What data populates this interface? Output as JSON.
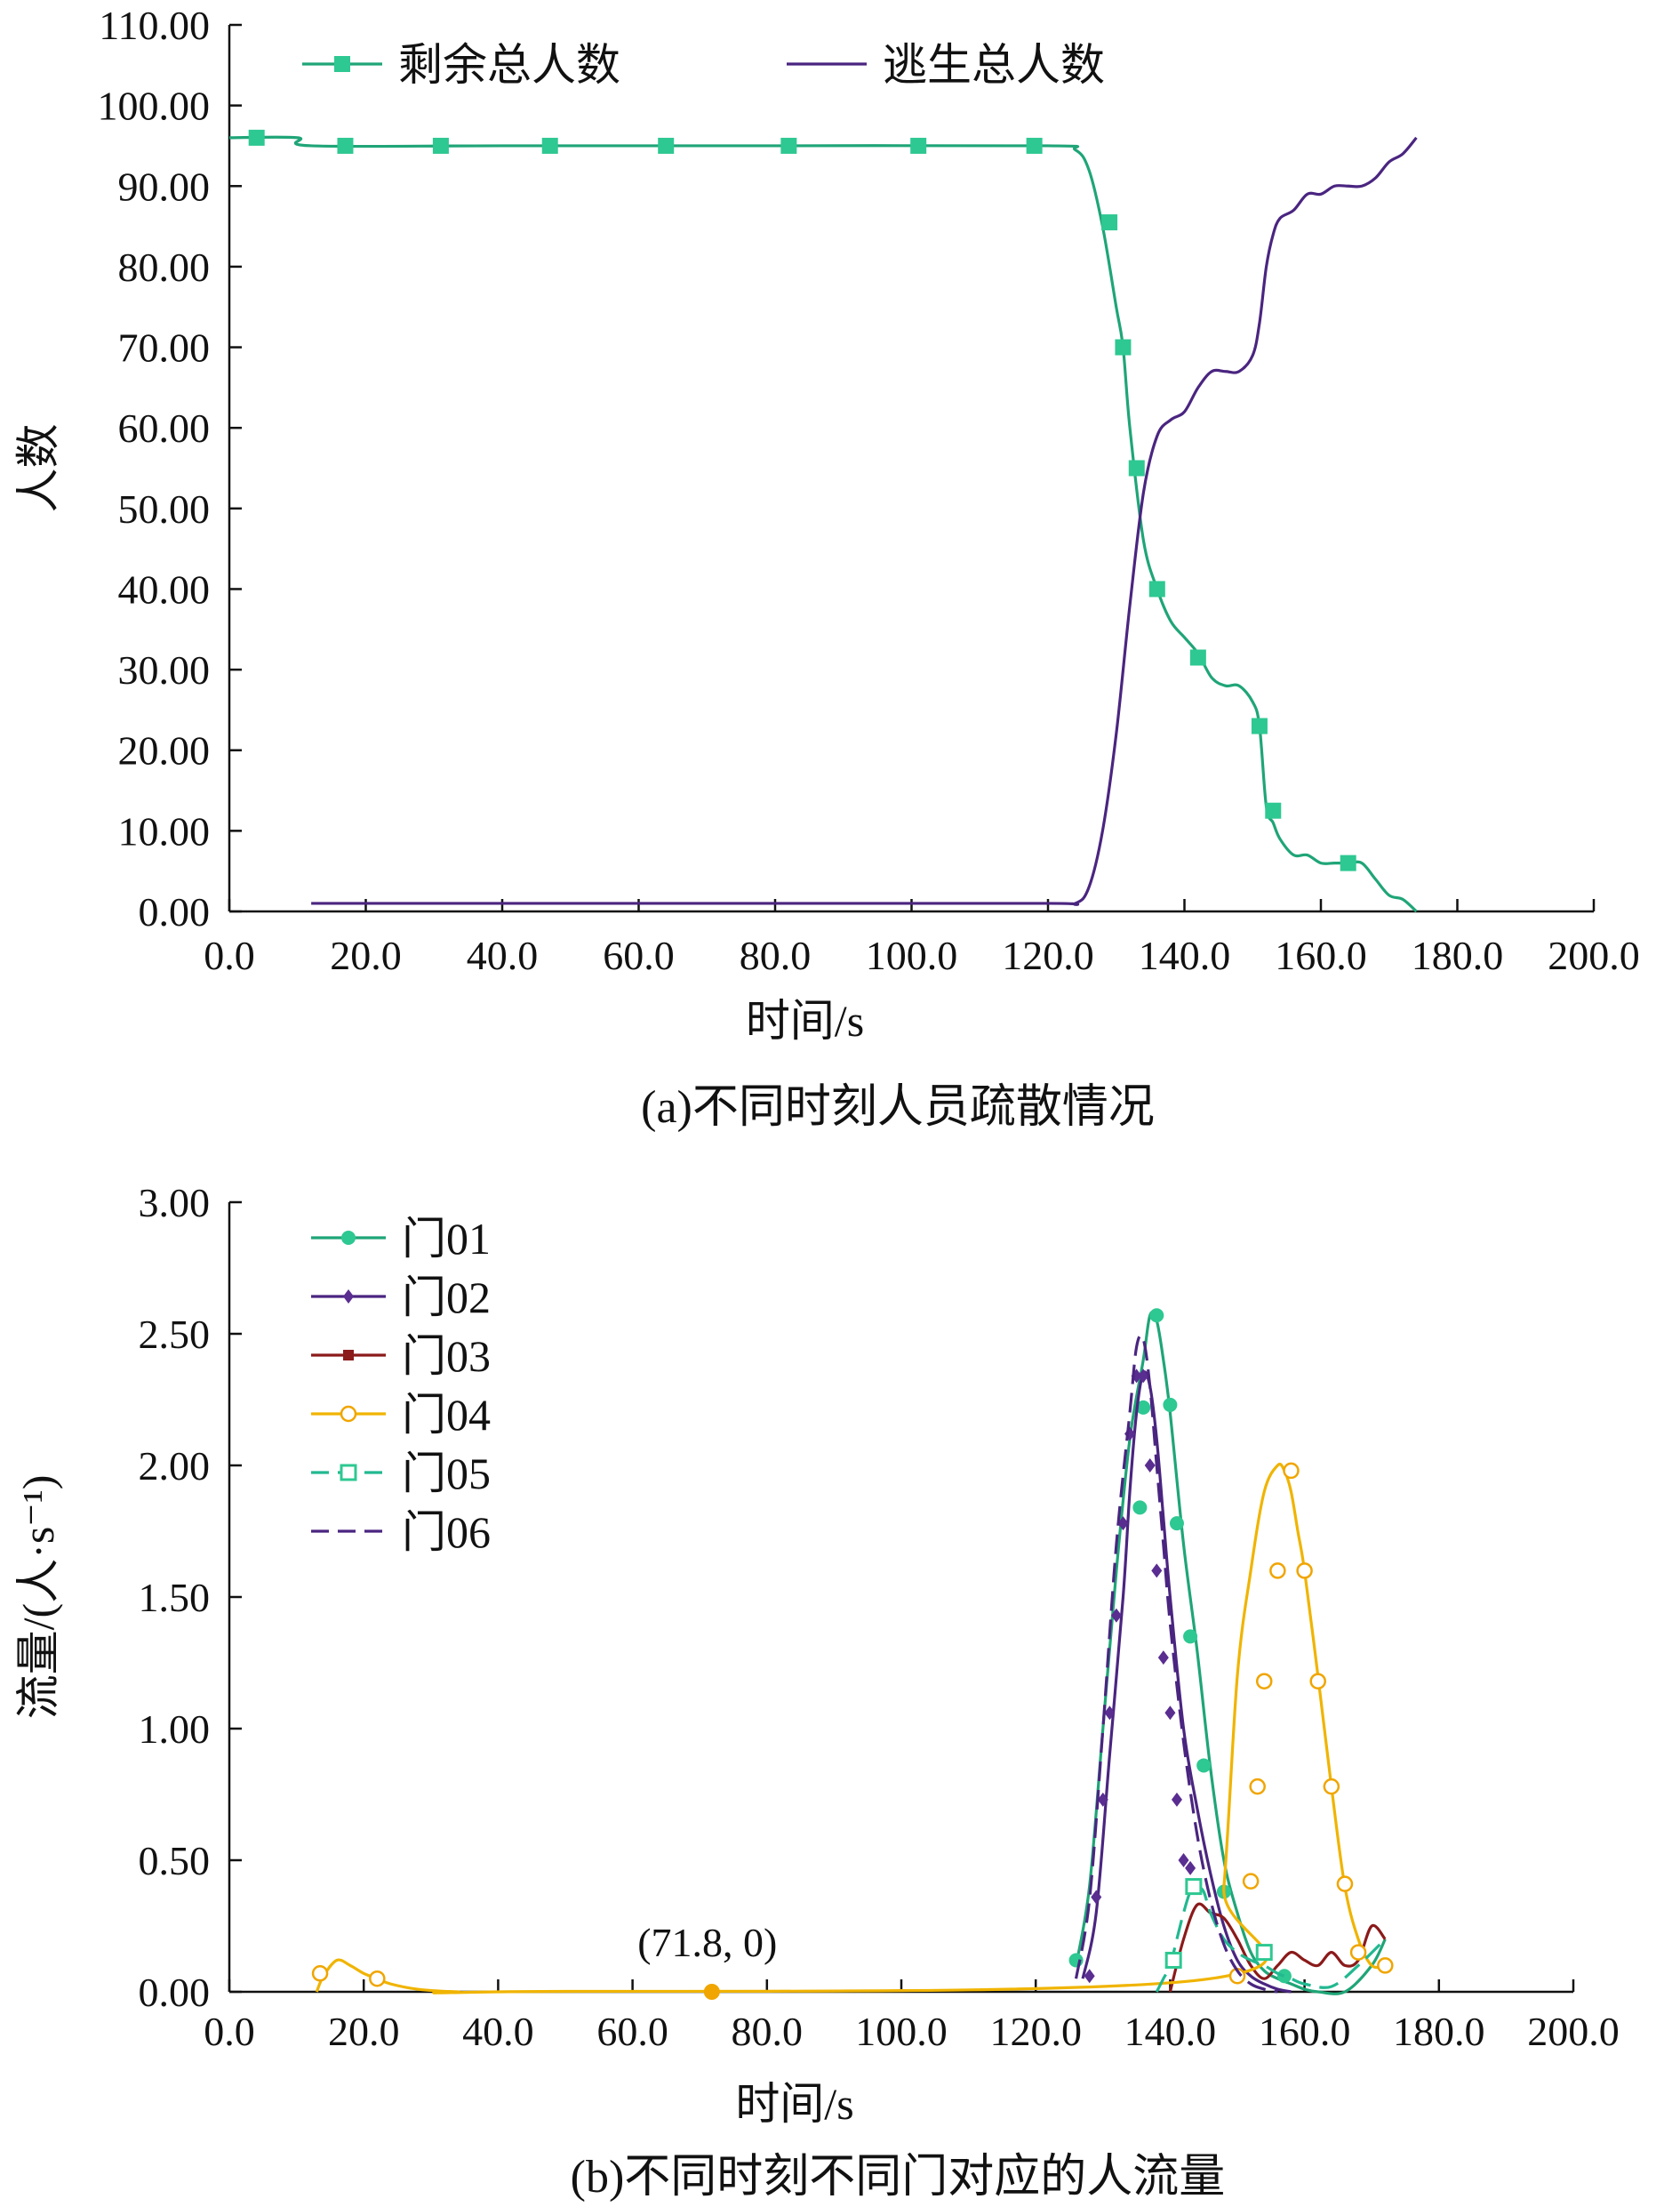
{
  "figure": {
    "panels": [
      "a",
      "b"
    ]
  },
  "chart_data": [
    {
      "id": "a",
      "type": "line",
      "caption": "(a)不同时刻人员疏散情况",
      "xlabel": "时间/s",
      "ylabel": "人数",
      "xlim": [
        0,
        200
      ],
      "ylim": [
        0,
        110
      ],
      "x_ticks": [
        0,
        20,
        40,
        60,
        80,
        100,
        120,
        140,
        160,
        180,
        200
      ],
      "x_tick_labels": [
        "0.0",
        "20.0",
        "40.0",
        "60.0",
        "80.0",
        "100.0",
        "120.0",
        "140.0",
        "160.0",
        "180.0",
        "200.0"
      ],
      "y_ticks": [
        0,
        10,
        20,
        30,
        40,
        50,
        60,
        70,
        80,
        90,
        100,
        110
      ],
      "y_tick_labels": [
        "0.00",
        "10.00",
        "20.00",
        "30.00",
        "40.00",
        "50.00",
        "60.00",
        "70.00",
        "80.00",
        "90.00",
        "100.00",
        "110.00"
      ],
      "grid": false,
      "legend": "top-left",
      "series": [
        {
          "name": "剩余总人数",
          "color": "#1fa577",
          "marker": "square",
          "marker_color": "#2ec892",
          "x": [
            0,
            10,
            12,
            40,
            80,
            120,
            124,
            126,
            128,
            130,
            131,
            132,
            134,
            136,
            138,
            140,
            142,
            144,
            146,
            148,
            150,
            151,
            152,
            153,
            154,
            156,
            158,
            160,
            162,
            164,
            166,
            168,
            170,
            172,
            174
          ],
          "y": [
            96,
            96,
            95,
            95,
            95,
            95,
            94.5,
            92,
            85,
            75,
            70,
            60,
            46,
            40,
            36,
            34,
            32,
            29,
            28,
            28,
            26,
            23,
            13,
            11,
            9,
            7,
            7,
            6,
            6,
            6,
            6,
            4,
            2,
            1.5,
            0
          ],
          "markers_x": [
            4,
            17,
            31,
            47,
            64,
            82,
            101,
            118,
            129,
            131,
            133,
            136,
            142,
            151,
            153,
            164
          ],
          "markers_y": [
            96,
            95,
            95,
            95,
            95,
            95,
            95,
            95,
            85.5,
            70,
            55,
            40,
            31.5,
            23,
            12.5,
            6
          ]
        },
        {
          "name": "逃生总人数",
          "color": "#4a2580",
          "marker": "none",
          "x": [
            12,
            40,
            80,
            120,
            124,
            126,
            128,
            130,
            132,
            134,
            136,
            138,
            140,
            142,
            144,
            146,
            148,
            150,
            151,
            152,
            153,
            154,
            156,
            158,
            160,
            162,
            164,
            166,
            168,
            170,
            172,
            174
          ],
          "y": [
            1,
            1,
            1,
            1,
            1,
            3,
            10,
            22,
            38,
            52,
            59,
            61,
            62,
            65,
            67,
            67,
            67,
            69,
            73,
            80,
            84,
            86,
            87,
            89,
            89,
            90,
            90,
            90,
            91,
            93,
            94,
            96
          ]
        }
      ]
    },
    {
      "id": "b",
      "type": "line",
      "caption": "(b)不同时刻不同门对应的人流量",
      "xlabel": "时间/s",
      "ylabel": "流量/(人·s⁻¹)",
      "xlim": [
        0,
        200
      ],
      "ylim": [
        0,
        3
      ],
      "x_ticks": [
        0,
        20,
        40,
        60,
        80,
        100,
        120,
        140,
        160,
        180,
        200
      ],
      "x_tick_labels": [
        "0.0",
        "20.0",
        "40.0",
        "60.0",
        "80.0",
        "100.0",
        "120.0",
        "140.0",
        "160.0",
        "180.0",
        "200.0"
      ],
      "y_ticks": [
        0,
        0.5,
        1,
        1.5,
        2,
        2.5,
        3
      ],
      "y_tick_labels": [
        "0.00",
        "0.50",
        "1.00",
        "1.50",
        "2.00",
        "2.50",
        "3.00"
      ],
      "grid": false,
      "legend": "top-left",
      "annotations": [
        {
          "text": "(71.8, 0)",
          "x": 71.8,
          "y": 0,
          "color": "#f0a500"
        }
      ],
      "series": [
        {
          "name": "门01",
          "color": "#1fa577",
          "marker": "circle-filled",
          "marker_color": "#2ec892",
          "x": [
            126,
            128,
            130,
            132,
            134,
            136,
            137,
            138,
            139,
            140,
            142,
            144,
            146,
            148,
            150,
            152,
            154,
            156,
            158,
            160,
            162,
            166,
            170,
            172
          ],
          "y": [
            0.1,
            0.4,
            1.0,
            1.6,
            2.1,
            2.4,
            2.57,
            2.55,
            2.4,
            2.2,
            1.7,
            1.3,
            0.85,
            0.5,
            0.3,
            0.15,
            0.08,
            0.05,
            0.03,
            0.01,
            0.0,
            0.0,
            0.1,
            0.2
          ],
          "markers_x": [
            126,
            135.5,
            136,
            138,
            140,
            141,
            143,
            145,
            148,
            157
          ],
          "markers_y": [
            0.12,
            1.84,
            2.22,
            2.57,
            2.23,
            1.78,
            1.35,
            0.86,
            0.38,
            0.06
          ]
        },
        {
          "name": "门02",
          "color": "#4a2580",
          "marker": "diamond",
          "marker_color": "#5a2d91",
          "x": [
            127,
            129,
            131,
            133,
            134,
            135,
            136,
            137,
            138,
            139,
            140,
            142,
            144,
            146,
            148,
            150,
            152,
            154,
            156,
            158
          ],
          "y": [
            0.05,
            0.3,
            0.9,
            1.5,
            1.9,
            2.2,
            2.35,
            2.3,
            2.1,
            1.8,
            1.5,
            1.0,
            0.7,
            0.45,
            0.25,
            0.12,
            0.06,
            0.03,
            0.01,
            0.0
          ],
          "markers_x": [
            128,
            129,
            130,
            131,
            132,
            133,
            134,
            135,
            136,
            137,
            138,
            139,
            140,
            141,
            142,
            143
          ],
          "markers_y": [
            0.06,
            0.36,
            0.73,
            1.06,
            1.43,
            1.78,
            2.12,
            2.34,
            2.34,
            2.0,
            1.6,
            1.27,
            1.06,
            0.73,
            0.5,
            0.47
          ]
        },
        {
          "name": "门03",
          "color": "#8b1a1a",
          "marker": "plus",
          "marker_color": "#8b1a1a",
          "x": [
            140,
            142,
            144,
            146,
            148,
            150,
            152,
            154,
            156,
            158,
            160,
            162,
            164,
            166,
            168,
            170,
            172
          ],
          "y": [
            0.0,
            0.2,
            0.33,
            0.3,
            0.28,
            0.2,
            0.1,
            0.05,
            0.1,
            0.15,
            0.12,
            0.1,
            0.15,
            0.1,
            0.12,
            0.25,
            0.2
          ],
          "markers_x": [],
          "markers_y": []
        },
        {
          "name": "门04",
          "color": "#f0b400",
          "marker": "circle-open",
          "marker_color": "#f0a500",
          "x": [
            13,
            14,
            16,
            18,
            20,
            22,
            24,
            28,
            34,
            40,
            146,
            148,
            150,
            152,
            154,
            156,
            157,
            158,
            159,
            160,
            162,
            164,
            166,
            168,
            170,
            172
          ],
          "y": [
            0.0,
            0.06,
            0.12,
            0.1,
            0.07,
            0.05,
            0.03,
            0.01,
            0.0,
            0.0,
            0.05,
            0.4,
            1.2,
            1.6,
            1.9,
            2.0,
            1.98,
            1.9,
            1.75,
            1.6,
            1.2,
            0.78,
            0.4,
            0.2,
            0.1,
            0.1
          ],
          "markers_x": [
            13.5,
            22,
            150,
            152,
            153,
            154,
            156,
            158,
            160,
            162,
            164,
            166,
            168,
            172
          ],
          "markers_y": [
            0.07,
            0.05,
            0.06,
            0.42,
            0.78,
            1.18,
            1.6,
            1.98,
            1.6,
            1.18,
            0.78,
            0.41,
            0.15,
            0.1
          ]
        },
        {
          "name": "门05",
          "color": "#22b890",
          "marker": "square-open",
          "marker_color": "#2ec892",
          "dashed": true,
          "x": [
            138,
            139,
            140,
            141,
            142,
            143,
            144,
            145,
            146,
            148,
            150,
            152,
            154,
            156,
            158,
            160,
            164,
            168,
            172
          ],
          "y": [
            0.0,
            0.05,
            0.1,
            0.2,
            0.3,
            0.38,
            0.4,
            0.38,
            0.3,
            0.2,
            0.15,
            0.12,
            0.1,
            0.07,
            0.05,
            0.03,
            0.02,
            0.1,
            0.2
          ],
          "markers_x": [
            140.5,
            143.5,
            154
          ],
          "markers_y": [
            0.12,
            0.4,
            0.15
          ]
        },
        {
          "name": "门06",
          "color": "#4a2580",
          "marker": "none",
          "dashed": true,
          "x": [
            126,
            128,
            130,
            132,
            134,
            135,
            136,
            137,
            138,
            139,
            140,
            142,
            144,
            146,
            148,
            150,
            152,
            154,
            156
          ],
          "y": [
            0.05,
            0.35,
            1.0,
            1.7,
            2.2,
            2.45,
            2.48,
            2.3,
            2.0,
            1.7,
            1.4,
            0.95,
            0.6,
            0.35,
            0.18,
            0.08,
            0.03,
            0.01,
            0.0
          ]
        }
      ]
    }
  ]
}
